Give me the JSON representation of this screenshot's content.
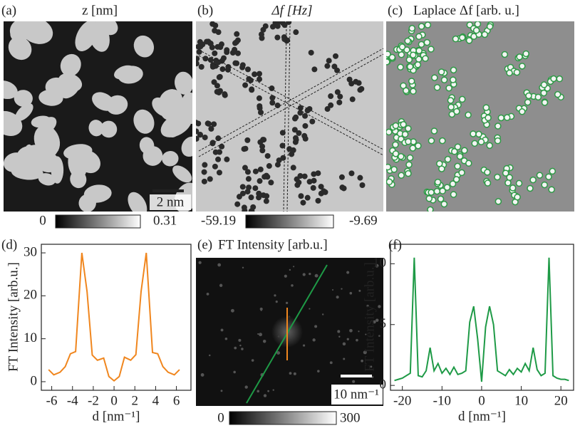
{
  "panels": [
    {
      "label": "(a)",
      "title": "z [nm]",
      "scale_bar": "2 nm",
      "cbar_min": "0",
      "cbar_max": "0.31"
    },
    {
      "label": "(b)",
      "title": "Δf [Hz]",
      "cbar_min": "-59.19",
      "cbar_max": "-9.69"
    },
    {
      "label": "(c)",
      "title": "Laplace Δf  [arb. u.]"
    },
    {
      "label": "(e)",
      "title": "FT Intensity [arb.u.]",
      "scale_bar": "10 nm⁻¹",
      "cbar_min": "0",
      "cbar_max": "300"
    }
  ],
  "chart_data": [
    {
      "type": "line",
      "label": "(d)",
      "x_label": "d [nm⁻¹]",
      "y_label": "FT Intensity [arb.u.]",
      "x": [
        -6.3,
        -5.8,
        -5.2,
        -4.7,
        -4.2,
        -3.7,
        -3.1,
        -2.6,
        -2.1,
        -1.6,
        -1.0,
        -0.5,
        0,
        0.5,
        1.0,
        1.6,
        2.1,
        2.6,
        3.1,
        3.7,
        4.2,
        4.7,
        5.2,
        5.8,
        6.3
      ],
      "series": [
        {
          "color": "#f0861e",
          "values": [
            2.8,
            1.6,
            2.2,
            3.5,
            6.5,
            7,
            30,
            21,
            6.2,
            5,
            5.5,
            1.2,
            0.2,
            1.2,
            5.7,
            5,
            6.3,
            21,
            30,
            6.8,
            6.5,
            3.5,
            2.2,
            1.6,
            2.8
          ]
        }
      ],
      "xlim": [
        -7,
        7.4
      ],
      "xticks": [
        -6,
        -4,
        -2,
        0,
        2,
        4,
        6
      ],
      "ylim": [
        -2,
        32
      ],
      "yticks": [
        0,
        10,
        20,
        30
      ]
    },
    {
      "type": "line",
      "label": "(f)",
      "x_label": "d [nm⁻¹]",
      "y_label": "FT Intensity [arb.u.]",
      "x": [
        -22,
        -21,
        -20,
        -19,
        -18,
        -17,
        -16,
        -15,
        -14,
        -13,
        -12,
        -11,
        -10,
        -9,
        -8,
        -7,
        -6,
        -5,
        -4,
        -3,
        -2,
        -1,
        0,
        1,
        2,
        3,
        4,
        5,
        6,
        7,
        8,
        9,
        10,
        11,
        12,
        13,
        14,
        15,
        16,
        17,
        18,
        19,
        20,
        21,
        22
      ],
      "series": [
        {
          "color": "#1e9a46",
          "values": [
            0.4,
            0.5,
            0.6,
            0.8,
            1.0,
            10.5,
            0.8,
            0.7,
            1.2,
            3.1,
            1.2,
            1.8,
            1.0,
            1.4,
            0.9,
            1.5,
            0.9,
            1.0,
            1.2,
            5.2,
            6.5,
            3.8,
            0.3,
            4.8,
            6.5,
            5.0,
            1.2,
            1.0,
            0.8,
            1.3,
            0.9,
            1.4,
            1.1,
            1.8,
            1.2,
            3.1,
            1.3,
            0.8,
            1.0,
            10.5,
            0.8,
            0.6,
            0.5,
            0.5,
            0.4
          ]
        }
      ],
      "xlim": [
        -23,
        23.2
      ],
      "xticks": [
        -20,
        -10,
        0,
        10,
        20
      ],
      "ylim": [
        -0.4,
        11.6
      ],
      "yticks": [
        0,
        5,
        10
      ]
    }
  ]
}
